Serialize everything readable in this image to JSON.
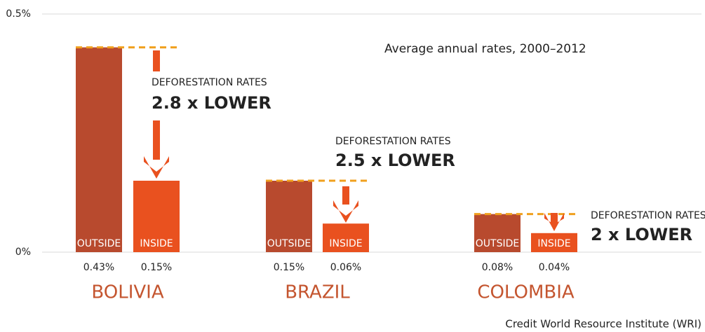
{
  "chart_data": {
    "type": "bar",
    "subtitle": "Average annual rates, 2000–2012",
    "categories": [
      "BOLIVIA",
      "BRAZIL",
      "COLOMBIA"
    ],
    "series": [
      {
        "name": "OUTSIDE",
        "color": "#b84a2e",
        "values": [
          0.43,
          0.15,
          0.08
        ],
        "value_labels": [
          "0.43%",
          "0.15%",
          "0.08%"
        ]
      },
      {
        "name": "INSIDE",
        "color": "#e9511f",
        "values": [
          0.15,
          0.06,
          0.04
        ],
        "value_labels": [
          "0.15%",
          "0.06%",
          "0.04%"
        ]
      }
    ],
    "annotations": [
      {
        "label": "DEFORESTATION RATES",
        "ratio": "2.8 x LOWER"
      },
      {
        "label": "DEFORESTATION RATES",
        "ratio": "2.5 x LOWER"
      },
      {
        "label": "DEFORESTATION RATES",
        "ratio": "2 x LOWER"
      }
    ],
    "ylim": [
      0,
      0.5
    ],
    "yticks": [
      {
        "value": 0,
        "label": "0%"
      },
      {
        "value": 0.5,
        "label": "0.5%"
      }
    ],
    "dash_color": "#f0a01e",
    "category_color": "#c4552f",
    "credit": "Credit World Resource Institute (WRI)"
  }
}
